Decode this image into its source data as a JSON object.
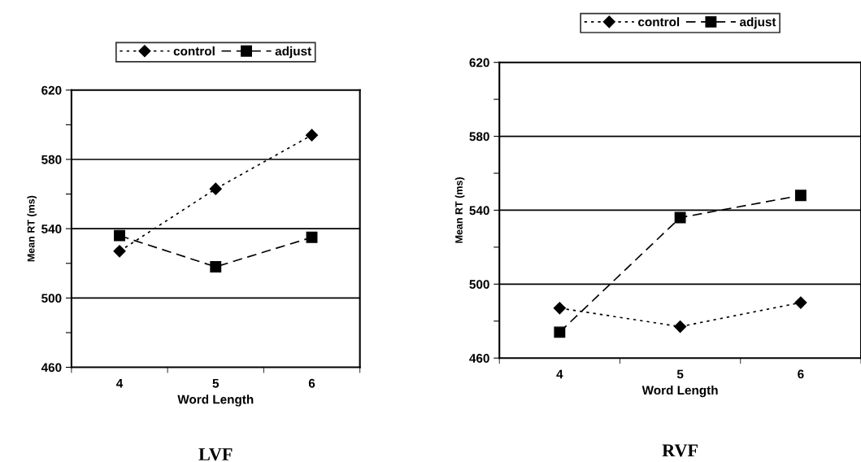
{
  "chart_data": [
    {
      "type": "line",
      "title": "LVF",
      "xlabel": "Word Length",
      "ylabel": "Mean RT (ms)",
      "categories": [
        "4",
        "5",
        "6"
      ],
      "series": [
        {
          "name": "control",
          "color": "#000000",
          "values": [
            527,
            563,
            594
          ],
          "marker": "diamond",
          "line_style": "dotted"
        },
        {
          "name": "adjust",
          "color": "#000000",
          "values": [
            536,
            518,
            535
          ],
          "marker": "square",
          "line_style": "dashed"
        }
      ],
      "ylim": [
        460,
        620
      ],
      "yticks": [
        460,
        {
          "value": 480,
          "label": null
        },
        500,
        {
          "value": 520,
          "label": null
        },
        540,
        {
          "value": 560,
          "label": null
        },
        580,
        {
          "value": 600,
          "label": null
        },
        620
      ],
      "grid": "y",
      "legend": "top"
    },
    {
      "type": "line",
      "title": "RVF",
      "xlabel": "Word Length",
      "ylabel": "Mean RT (ms)",
      "categories": [
        "4",
        "5",
        "6"
      ],
      "series": [
        {
          "name": "control",
          "color": "#000000",
          "values": [
            487,
            477,
            490
          ],
          "marker": "diamond",
          "line_style": "dotted"
        },
        {
          "name": "adjust",
          "color": "#000000",
          "values": [
            474,
            536,
            548
          ],
          "marker": "square",
          "line_style": "dashed"
        }
      ],
      "ylim": [
        460,
        620
      ],
      "yticks": [
        460,
        {
          "value": 480,
          "label": null
        },
        500,
        {
          "value": 520,
          "label": null
        },
        540,
        {
          "value": 560,
          "label": null
        },
        580,
        {
          "value": 600,
          "label": null
        },
        620
      ],
      "grid": "y",
      "legend": "top"
    }
  ]
}
